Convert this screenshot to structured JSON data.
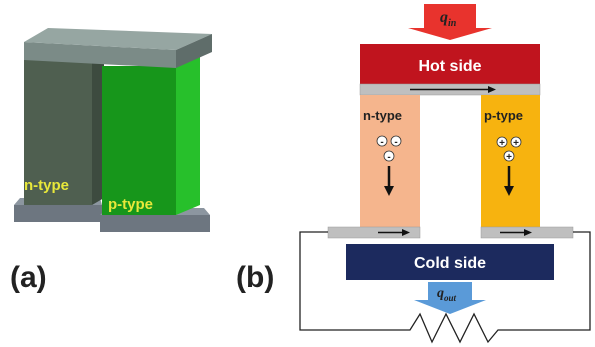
{
  "panel_a": {
    "label": "(a)",
    "n_label": "n-type",
    "p_label": "p-type"
  },
  "panel_b": {
    "label": "(b)",
    "hot_label": "Hot side",
    "cold_label": "Cold side",
    "n_label": "n-type",
    "p_label": "p-type",
    "q_in_base": "q",
    "q_in_sub": "in",
    "q_out_base": "q",
    "q_out_sub": "out",
    "n_carriers": [
      "-",
      "-",
      "-"
    ],
    "p_carriers": [
      "+",
      "+",
      "+"
    ]
  },
  "colors": {
    "n_leg_3d": "#4f5f50",
    "p_leg_3d": "#1faa1f",
    "top_bar_3d": "#5f6d6a",
    "base_3d": "#5a6570",
    "label_yellow": "#e8e83a",
    "hot": "#c0141e",
    "cold": "#1c2a5e",
    "n_leg": "#f5b58d",
    "p_leg": "#f7b30f",
    "metal": "#bfbfbf",
    "q_in_arrow": "#e8332d",
    "q_out_arrow": "#5a9ad8"
  }
}
